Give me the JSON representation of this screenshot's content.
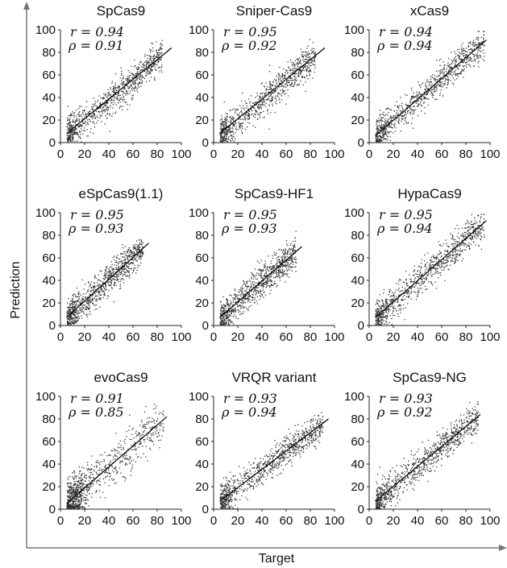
{
  "figure": {
    "xlabel": "Target",
    "ylabel": "Prediction",
    "ticks": [
      "0",
      "20",
      "40",
      "60",
      "80",
      "100"
    ]
  },
  "chart_data": [
    {
      "type": "scatter",
      "title": "SpCas9",
      "r": "0.94",
      "rho": "0.91",
      "xlim": [
        0,
        100
      ],
      "ylim": [
        0,
        100
      ],
      "fit": {
        "x0": 5,
        "y0": 8,
        "x1": 92,
        "y1": 84
      },
      "points": "dense cloud 10–90 along diagonal"
    },
    {
      "type": "scatter",
      "title": "Sniper-Cas9",
      "r": "0.95",
      "rho": "0.92",
      "xlim": [
        0,
        100
      ],
      "ylim": [
        0,
        100
      ],
      "fit": {
        "x0": 5,
        "y0": 8,
        "x1": 92,
        "y1": 84
      },
      "points": "dense cloud 5–88 along diagonal"
    },
    {
      "type": "scatter",
      "title": "xCas9",
      "r": "0.94",
      "rho": "0.94",
      "xlim": [
        0,
        100
      ],
      "ylim": [
        0,
        100
      ],
      "fit": {
        "x0": 5,
        "y0": 6,
        "x1": 97,
        "y1": 91
      },
      "points": "dense cloud 5–95 along diagonal"
    },
    {
      "type": "scatter",
      "title": "eSpCas9(1.1)",
      "r": "0.95",
      "rho": "0.93",
      "xlim": [
        0,
        100
      ],
      "ylim": [
        0,
        100
      ],
      "fit": {
        "x0": 5,
        "y0": 7,
        "x1": 73,
        "y1": 73
      },
      "points": "dense cloud 5–70 along diagonal"
    },
    {
      "type": "scatter",
      "title": "SpCas9-HF1",
      "r": "0.95",
      "rho": "0.93",
      "xlim": [
        0,
        100
      ],
      "ylim": [
        0,
        100
      ],
      "fit": {
        "x0": 5,
        "y0": 7,
        "x1": 73,
        "y1": 70
      },
      "points": "dense cloud 5–70 along diagonal"
    },
    {
      "type": "scatter",
      "title": "HypaCas9",
      "r": "0.95",
      "rho": "0.94",
      "xlim": [
        0,
        100
      ],
      "ylim": [
        0,
        100
      ],
      "fit": {
        "x0": 5,
        "y0": 7,
        "x1": 97,
        "y1": 93
      },
      "points": "dense cloud 5–95 along diagonal"
    },
    {
      "type": "scatter",
      "title": "evoCas9",
      "r": "0.91",
      "rho": "0.85",
      "xlim": [
        0,
        100
      ],
      "ylim": [
        0,
        100
      ],
      "fit": {
        "x0": 5,
        "y0": 5,
        "x1": 88,
        "y1": 82
      },
      "points": "cloud clustered 5–20 with spread to 90"
    },
    {
      "type": "scatter",
      "title": "VRQR variant",
      "r": "0.93",
      "rho": "0.94",
      "xlim": [
        0,
        100
      ],
      "ylim": [
        0,
        100
      ],
      "fit": {
        "x0": 5,
        "y0": 7,
        "x1": 95,
        "y1": 80
      },
      "points": "dense cloud 5–90 along diagonal"
    },
    {
      "type": "scatter",
      "title": "SpCas9-NG",
      "r": "0.93",
      "rho": "0.92",
      "xlim": [
        0,
        100
      ],
      "ylim": [
        0,
        100
      ],
      "fit": {
        "x0": 5,
        "y0": 7,
        "x1": 92,
        "y1": 84
      },
      "points": "dense cloud 5–90 along diagonal"
    }
  ]
}
